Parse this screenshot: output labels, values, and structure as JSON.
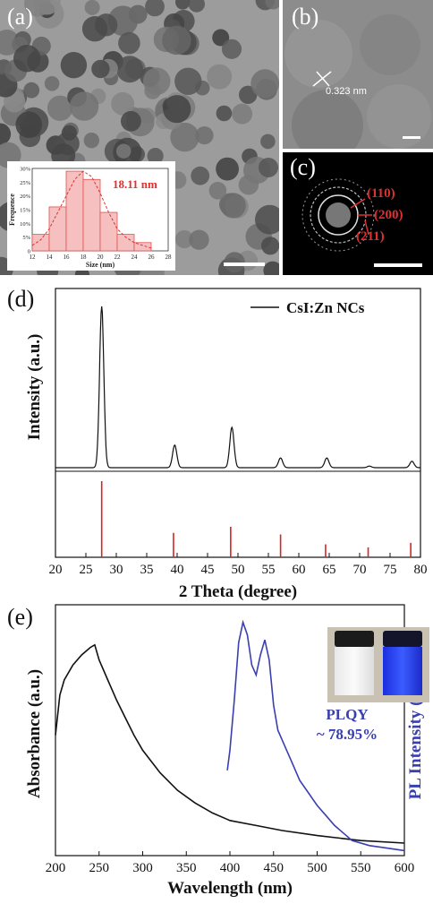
{
  "panels": {
    "a": {
      "label": "(a)"
    },
    "b": {
      "label": "(b)",
      "lattice": "0.323 nm"
    },
    "c": {
      "label": "(c)",
      "rings": [
        "(110)",
        "(200)",
        "(211)"
      ]
    },
    "d": {
      "label": "(d)"
    },
    "e": {
      "label": "(e)"
    }
  },
  "chart_data": [
    {
      "id": "size-histogram",
      "type": "bar",
      "annotation": "18.11 nm",
      "xlabel": "Size (nm)",
      "ylabel": "Frequence",
      "xticks": [
        12,
        14,
        16,
        18,
        20,
        22,
        24,
        26,
        28
      ],
      "yticks": [
        "0",
        "5%",
        "10%",
        "15%",
        "20%",
        "25%",
        "30%"
      ],
      "xlim": [
        12,
        28
      ],
      "ylim": [
        0,
        30
      ],
      "bin_edges": [
        12,
        14,
        16,
        18,
        20,
        22,
        24,
        26
      ],
      "values": [
        6,
        16,
        29,
        26,
        14,
        6,
        3
      ],
      "fit": [
        [
          12,
          2
        ],
        [
          13,
          4
        ],
        [
          14,
          8
        ],
        [
          15,
          14
        ],
        [
          16,
          20
        ],
        [
          17,
          26
        ],
        [
          18,
          29
        ],
        [
          19,
          27
        ],
        [
          20,
          21
        ],
        [
          21,
          14
        ],
        [
          22,
          8
        ],
        [
          23,
          5
        ],
        [
          24,
          3
        ],
        [
          25,
          2
        ],
        [
          26,
          1
        ]
      ]
    },
    {
      "id": "xrd",
      "type": "line",
      "legend": "CsI:Zn NCs",
      "xlabel": "2 Theta (degree)",
      "ylabel": "Intensity (a.u.)",
      "xticks": [
        20,
        25,
        30,
        35,
        40,
        45,
        50,
        55,
        60,
        65,
        70,
        75,
        80
      ],
      "xlim": [
        20,
        80
      ],
      "peaks": [
        [
          27.6,
          1.0
        ],
        [
          39.6,
          0.14
        ],
        [
          49.0,
          0.25
        ],
        [
          57.0,
          0.06
        ],
        [
          64.6,
          0.06
        ],
        [
          71.6,
          0.01
        ],
        [
          78.6,
          0.04
        ]
      ],
      "reference_x": [
        27.6,
        39.4,
        48.8,
        57.0,
        64.4,
        71.4,
        78.4
      ],
      "reference_h": [
        1.0,
        0.32,
        0.4,
        0.3,
        0.17,
        0.13,
        0.19
      ]
    },
    {
      "id": "absorbance-pl",
      "type": "line",
      "xlabel": "Wavelength (nm)",
      "ylabel": "Absorbance (a.u.)",
      "y2label": "PL Intensity (a.u.)",
      "xticks": [
        200,
        250,
        300,
        350,
        400,
        450,
        500,
        550,
        600
      ],
      "xlim": [
        200,
        600
      ],
      "annotation": [
        "PLQY",
        "~ 78.95%"
      ],
      "series": [
        {
          "points": [
            [
              200,
              0.48
            ],
            [
              205,
              0.64
            ],
            [
              210,
              0.7
            ],
            [
              220,
              0.76
            ],
            [
              230,
              0.8
            ],
            [
              240,
              0.83
            ],
            [
              245,
              0.84
            ],
            [
              250,
              0.78
            ],
            [
              260,
              0.7
            ],
            [
              270,
              0.62
            ],
            [
              280,
              0.55
            ],
            [
              290,
              0.48
            ],
            [
              300,
              0.42
            ],
            [
              320,
              0.33
            ],
            [
              340,
              0.26
            ],
            [
              360,
              0.21
            ],
            [
              380,
              0.17
            ],
            [
              400,
              0.14
            ],
            [
              430,
              0.12
            ],
            [
              460,
              0.1
            ],
            [
              500,
              0.08
            ],
            [
              550,
              0.06
            ],
            [
              600,
              0.05
            ]
          ],
          "color": "#111111"
        },
        {
          "points": [
            [
              397,
              0.34
            ],
            [
              400,
              0.42
            ],
            [
              405,
              0.62
            ],
            [
              410,
              0.85
            ],
            [
              415,
              0.93
            ],
            [
              420,
              0.88
            ],
            [
              425,
              0.76
            ],
            [
              430,
              0.72
            ],
            [
              435,
              0.8
            ],
            [
              440,
              0.86
            ],
            [
              445,
              0.78
            ],
            [
              450,
              0.6
            ],
            [
              455,
              0.5
            ],
            [
              460,
              0.46
            ],
            [
              465,
              0.42
            ],
            [
              470,
              0.38
            ],
            [
              480,
              0.3
            ],
            [
              490,
              0.25
            ],
            [
              500,
              0.2
            ],
            [
              510,
              0.16
            ],
            [
              520,
              0.12
            ],
            [
              530,
              0.09
            ],
            [
              540,
              0.06
            ],
            [
              560,
              0.04
            ],
            [
              580,
              0.03
            ],
            [
              600,
              0.02
            ]
          ],
          "color": "#3a3fb0"
        }
      ]
    }
  ]
}
